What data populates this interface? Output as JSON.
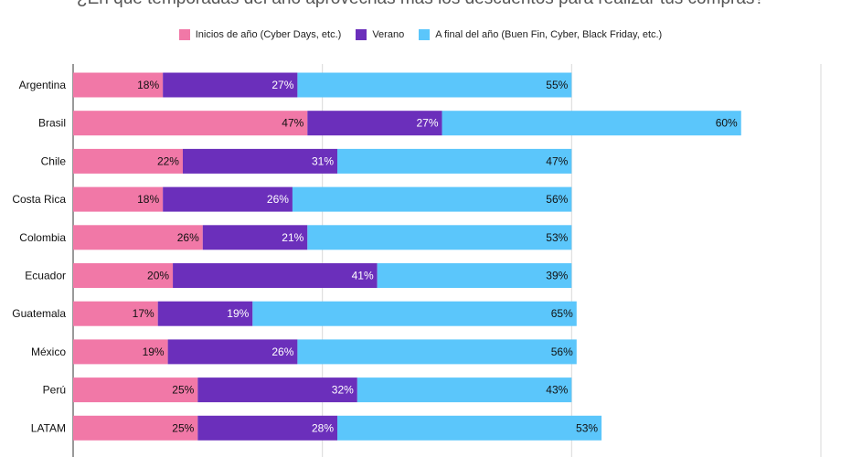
{
  "chart_data": {
    "type": "bar",
    "orientation": "horizontal",
    "stacked": true,
    "title": "¿En qué temporadas del año aprovechas más los descuentos para realizar tus compras?",
    "categories": [
      "Argentina",
      "Brasil",
      "Chile",
      "Costa Rica",
      "Colombia",
      "Ecuador",
      "Guatemala",
      "México",
      "Perú",
      "LATAM"
    ],
    "series": [
      {
        "name": "Inicios de año (Cyber Days, etc.)",
        "color": "#f178a7",
        "label_color": "#111111",
        "values": [
          18,
          47,
          22,
          18,
          26,
          20,
          17,
          19,
          25,
          25
        ]
      },
      {
        "name": "Verano",
        "color": "#6b2fbb",
        "label_color": "#ffffff",
        "values": [
          27,
          27,
          31,
          26,
          21,
          41,
          19,
          26,
          32,
          28
        ]
      },
      {
        "name": "A final del año (Buen Fin, Cyber, Black Friday, etc.)",
        "color": "#5bc6fb",
        "label_color": "#111111",
        "values": [
          55,
          60,
          47,
          56,
          53,
          39,
          65,
          56,
          43,
          53
        ]
      }
    ],
    "value_suffix": "%",
    "xlim": [
      0,
      150
    ],
    "grid": true,
    "legend_position": "top"
  }
}
